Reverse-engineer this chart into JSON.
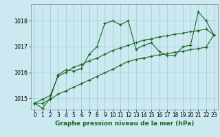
{
  "title": "Graphe pression niveau de la mer (hPa)",
  "background_color": "#cce8f0",
  "grid_color": "#99cccc",
  "line_color": "#1a6620",
  "xlim": [
    -0.5,
    23.5
  ],
  "ylim": [
    1014.55,
    1018.65
  ],
  "yticks": [
    1015,
    1016,
    1017,
    1018
  ],
  "xticks": [
    0,
    1,
    2,
    3,
    4,
    5,
    6,
    7,
    8,
    9,
    10,
    11,
    12,
    13,
    14,
    15,
    16,
    17,
    18,
    19,
    20,
    21,
    22,
    23
  ],
  "line1": [
    1014.8,
    1014.6,
    1015.0,
    1015.9,
    1016.1,
    1016.05,
    1016.15,
    1016.7,
    1017.0,
    1017.9,
    1018.0,
    1017.85,
    1018.0,
    1016.9,
    1017.05,
    1017.15,
    1016.8,
    1016.65,
    1016.65,
    1017.0,
    1017.05,
    1018.35,
    1018.0,
    1017.45
  ],
  "line2": [
    1014.8,
    1014.95,
    1015.1,
    1015.85,
    1016.0,
    1016.2,
    1016.3,
    1016.45,
    1016.55,
    1016.7,
    1016.85,
    1016.95,
    1017.05,
    1017.15,
    1017.25,
    1017.3,
    1017.38,
    1017.42,
    1017.48,
    1017.52,
    1017.58,
    1017.62,
    1017.68,
    1017.45
  ],
  "line3": [
    1014.8,
    1014.8,
    1014.95,
    1015.15,
    1015.28,
    1015.42,
    1015.56,
    1015.7,
    1015.84,
    1015.98,
    1016.12,
    1016.28,
    1016.42,
    1016.5,
    1016.56,
    1016.62,
    1016.68,
    1016.72,
    1016.78,
    1016.82,
    1016.88,
    1016.92,
    1016.98,
    1017.45
  ],
  "tick_fontsize": 5.5,
  "xlabel_fontsize": 6.5,
  "fig_width": 3.2,
  "fig_height": 2.0,
  "dpi": 100
}
